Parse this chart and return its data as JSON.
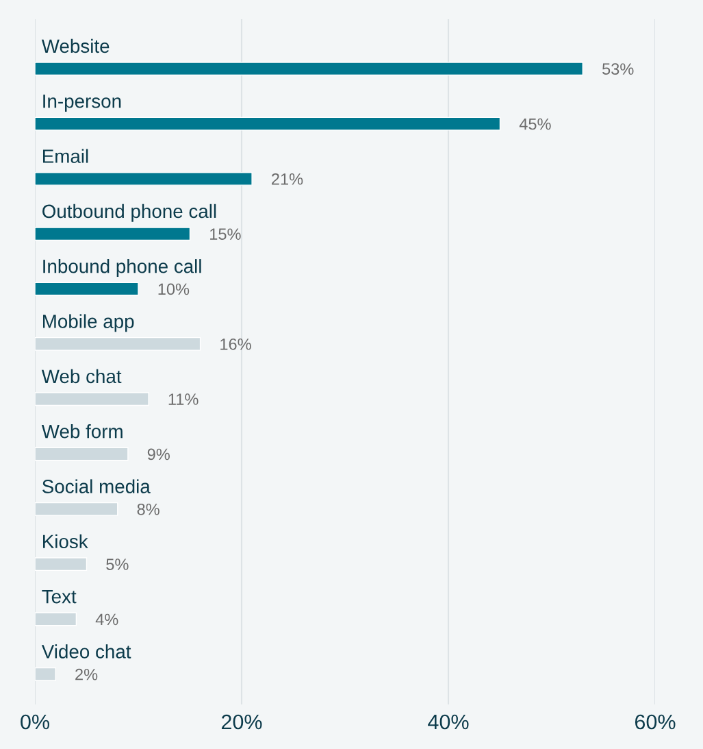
{
  "chart_data": {
    "type": "bar",
    "orientation": "horizontal",
    "categories": [
      "Website",
      "In-person",
      "Email",
      "Outbound phone call",
      "Inbound phone call",
      "Mobile app",
      "Web chat",
      "Web form",
      "Social media",
      "Kiosk",
      "Text",
      "Video chat"
    ],
    "values": [
      53,
      45,
      21,
      15,
      10,
      16,
      11,
      9,
      8,
      5,
      4,
      2
    ],
    "colors": [
      "#00788f",
      "#00788f",
      "#00788f",
      "#00788f",
      "#00788f",
      "#cdd9de",
      "#cdd9de",
      "#cdd9de",
      "#cdd9de",
      "#cdd9de",
      "#cdd9de",
      "#cdd9de"
    ],
    "value_labels": [
      "53%",
      "45%",
      "21%",
      "15%",
      "10%",
      "16%",
      "11%",
      "9%",
      "8%",
      "5%",
      "4%",
      "2%"
    ],
    "xlim": [
      0,
      60
    ],
    "xticks": [
      {
        "value": 0,
        "label": "0%"
      },
      {
        "value": 20,
        "label": "20%"
      },
      {
        "value": 40,
        "label": "40%"
      },
      {
        "value": 60,
        "label": "60%"
      }
    ],
    "grid": "x"
  }
}
